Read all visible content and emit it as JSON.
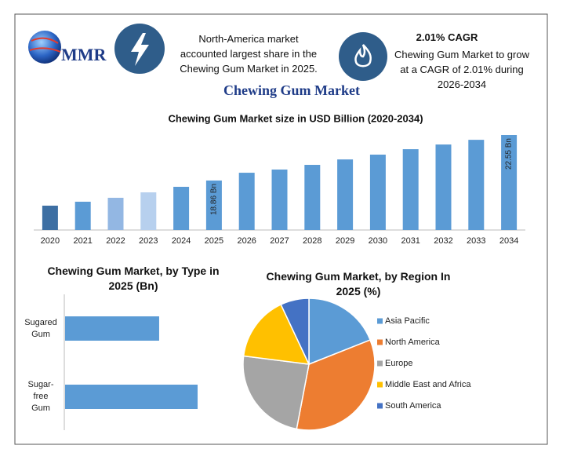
{
  "header": {
    "logo_text": "MMR",
    "highlight_1": "North-America market accounted largest share in the Chewing Gum Market in 2025.",
    "highlight_2_title": "2.01% CAGR",
    "highlight_2": "Chewing Gum Market to grow at a CAGR of 2.01% during 2026-2034"
  },
  "title": "Chewing Gum Market",
  "chart_data": [
    {
      "type": "bar",
      "title": "Chewing Gum Market size in USD Billion (2020-2034)",
      "categories": [
        "2020",
        "2021",
        "2022",
        "2023",
        "2024",
        "2025",
        "2026",
        "2027",
        "2028",
        "2029",
        "2030",
        "2031",
        "2032",
        "2033",
        "2034"
      ],
      "values": [
        16.82,
        17.14,
        17.46,
        17.9,
        18.35,
        18.86,
        19.49,
        19.75,
        20.13,
        20.57,
        20.96,
        21.4,
        21.78,
        22.16,
        22.55
      ],
      "value_labels": [
        null,
        null,
        null,
        null,
        null,
        "18.86 Bn",
        null,
        null,
        null,
        null,
        null,
        null,
        null,
        null,
        "22.55 Bn"
      ],
      "colors": [
        "#3d6fa3",
        "#5b9bd5",
        "#93b7e3",
        "#b7d0ee",
        "#5b9bd5",
        "#5b9bd5",
        "#5b9bd5",
        "#5b9bd5",
        "#5b9bd5",
        "#5b9bd5",
        "#5b9bd5",
        "#5b9bd5",
        "#5b9bd5",
        "#5b9bd5",
        "#5b9bd5"
      ]
    },
    {
      "type": "hbar",
      "title": "Chewing Gum Market, by Type in 2025 (Bn)",
      "categories": [
        "Sugared Gum",
        "Sugar-free Gum"
      ],
      "values": [
        7.83,
        11.03
      ],
      "color": "#5b9bd5"
    },
    {
      "type": "pie",
      "title": "Chewing Gum Market, by Region In 2025 (%)",
      "categories": [
        "Asia Pacific",
        "North America",
        "Europe",
        "Middle East and Africa",
        "South America"
      ],
      "values": [
        19,
        34,
        24,
        16,
        7
      ],
      "colors": [
        "#5b9bd5",
        "#ed7d31",
        "#a5a5a5",
        "#ffc000",
        "#4472c4"
      ],
      "legend": "right"
    }
  ]
}
